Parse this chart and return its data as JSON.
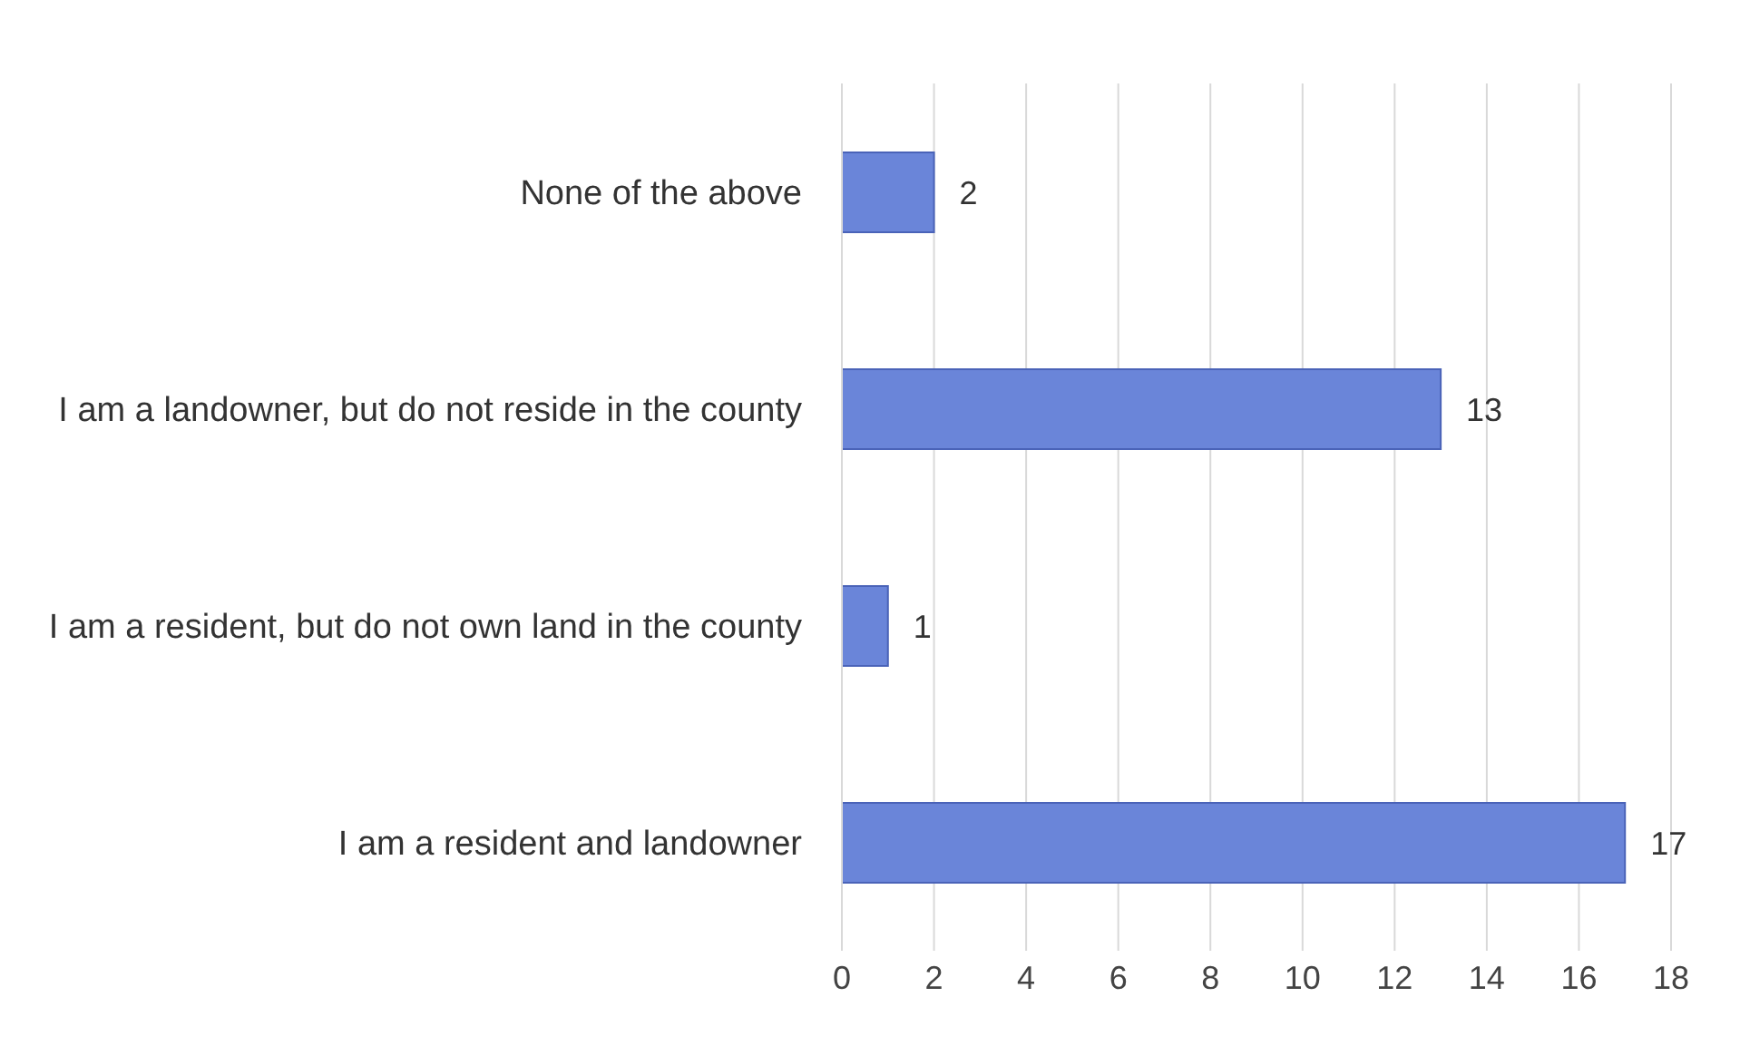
{
  "chart_data": {
    "type": "bar",
    "orientation": "horizontal",
    "categories": [
      "None of the above",
      "I am a landowner, but do not reside in the county",
      "I am a resident, but do not own land in the county",
      "I am a resident and landowner"
    ],
    "values": [
      2,
      13,
      1,
      17
    ],
    "color": "#6a85d9",
    "xlim": [
      0,
      18
    ],
    "xticks": [
      0,
      2,
      4,
      6,
      8,
      10,
      12,
      14,
      16,
      18
    ],
    "grid": "x",
    "data_labels": true
  }
}
